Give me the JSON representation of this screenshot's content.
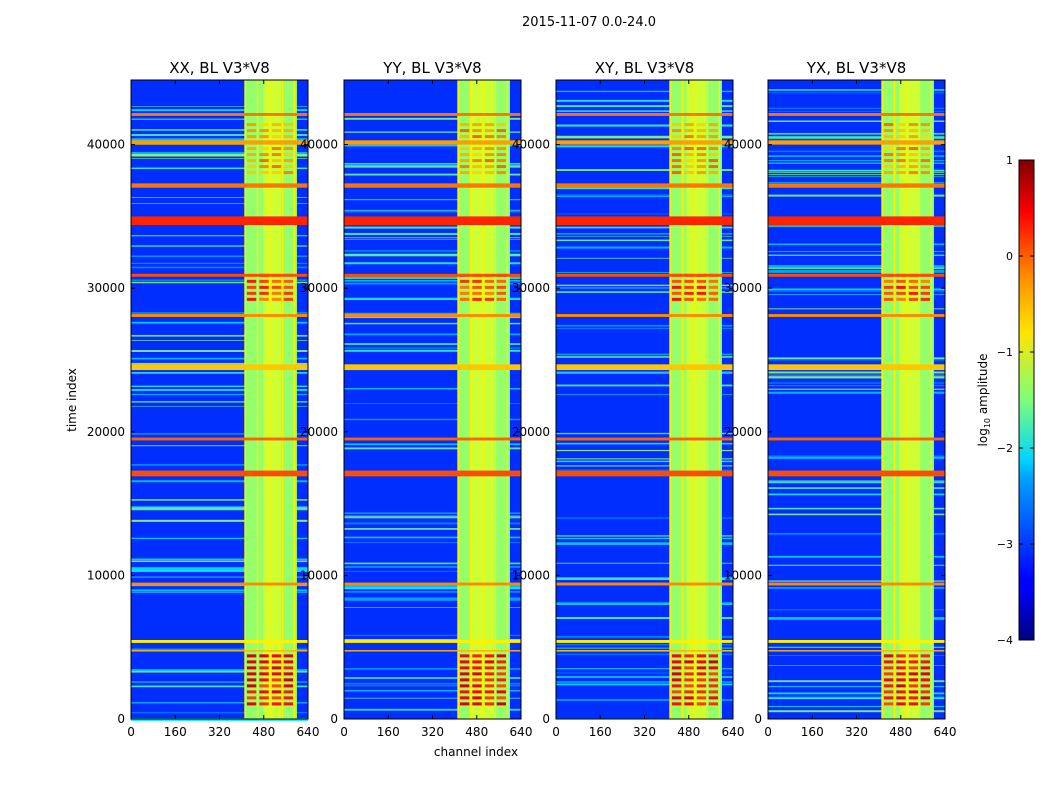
{
  "figure": {
    "suptitle": "2015-11-07 0.0-24.0"
  },
  "chart_data": {
    "type": "heatmap",
    "colormap": "jet",
    "x_axis_label": "channel index",
    "y_axis_label": "time index",
    "xlim": [
      0,
      640
    ],
    "ylim": [
      0,
      44500
    ],
    "x_ticks": [
      "0",
      "160",
      "320",
      "480",
      "640"
    ],
    "y_ticks": [
      "0",
      "10000",
      "20000",
      "30000",
      "40000"
    ],
    "x_tick_values": [
      0,
      160,
      320,
      480,
      640
    ],
    "y_tick_values": [
      0,
      10000,
      20000,
      30000,
      40000
    ],
    "panels": [
      {
        "title": "XX, BL V3*V8",
        "high_band_start": 478,
        "high_band_end": 542
      },
      {
        "title": "YY, BL V3*V8",
        "high_band_start": 458,
        "high_band_end": 543
      },
      {
        "title": "XY, BL V3*V8",
        "high_band_start": 472,
        "high_band_end": 543
      },
      {
        "title": "YX, BL V3*V8",
        "high_band_start": 475,
        "high_band_end": 545
      }
    ],
    "rfi_band_channels": [
      410,
      600
    ],
    "rfi_columns": [
      {
        "channel": 410,
        "width": 6
      },
      {
        "channel": 455,
        "width": 5
      },
      {
        "channel": 500,
        "width": 5
      },
      {
        "channel": 545,
        "width": 5
      },
      {
        "channel": 588,
        "width": 5
      }
    ],
    "strong_rfi_times": [
      {
        "start": 34400,
        "end": 35000,
        "level": 0.2
      },
      {
        "start": 30800,
        "end": 31000,
        "level": 0.0
      },
      {
        "start": 16900,
        "end": 17300,
        "level": 0.0
      },
      {
        "start": 24300,
        "end": 24700,
        "level": -0.6
      },
      {
        "start": 5300,
        "end": 5500,
        "level": -0.8
      },
      {
        "start": 4700,
        "end": 4800,
        "level": -0.5
      },
      {
        "start": 9300,
        "end": 9500,
        "level": -0.3
      },
      {
        "start": 42000,
        "end": 42200,
        "level": -0.2
      },
      {
        "start": 40000,
        "end": 40300,
        "level": -0.4
      },
      {
        "start": 37000,
        "end": 37300,
        "level": -0.2
      },
      {
        "start": 19400,
        "end": 19600,
        "level": -0.1
      },
      {
        "start": 28000,
        "end": 28200,
        "level": -0.3
      }
    ],
    "hot_blocks": [
      {
        "time_start": 1000,
        "time_end": 4500,
        "level": 0.6
      },
      {
        "time_start": 29000,
        "time_end": 31000,
        "level": 0.3
      },
      {
        "time_start": 38000,
        "time_end": 41500,
        "level": -0.1
      }
    ],
    "colorbar": {
      "label": "log₁₀ amplitude",
      "label_prefix": "log",
      "label_sub": "10",
      "label_suffix": " amplitude",
      "range": [
        -4,
        1
      ],
      "ticks": [
        "1",
        "0",
        "−1",
        "−2",
        "−3",
        "−4"
      ],
      "tick_values": [
        1,
        0,
        -1,
        -2,
        -3,
        -4
      ]
    }
  }
}
